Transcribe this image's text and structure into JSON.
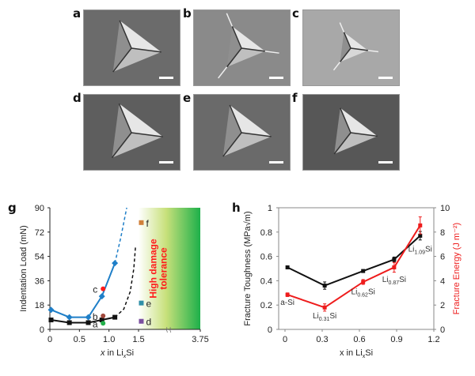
{
  "panels": {
    "micrographs": [
      {
        "label": "a"
      },
      {
        "label": "b"
      },
      {
        "label": "c"
      },
      {
        "label": "d"
      },
      {
        "label": "e"
      },
      {
        "label": "f"
      }
    ],
    "g_label": "g",
    "h_label": "h"
  },
  "chart_data": [
    {
      "id": "g",
      "type": "line",
      "ylabel": "Indentation Load (mN)",
      "xlabel": "x in LixSi",
      "xlabel_parts": {
        "pre": "x",
        "mid": " in Li",
        "sub": "x",
        "post": "Si"
      },
      "ylim": [
        0,
        90
      ],
      "yticks": [
        0,
        18,
        36,
        54,
        72,
        90
      ],
      "xticks": [
        {
          "label": "0",
          "value": 0
        },
        {
          "label": "0.5",
          "value": 0.5
        },
        {
          "label": "1.0",
          "value": 1.0
        },
        {
          "label": "1.5",
          "value": 1.5
        },
        {
          "label": "3.75",
          "value": 3.75
        }
      ],
      "axis_break_symbol": "⌇⌇",
      "region": {
        "label_line1": "High damage",
        "label_line2": "tolerance",
        "from": 1.5,
        "to": 3.75,
        "color_start": "#ffffff",
        "color_end": "#1db04a",
        "label_color": "#ff1a1a"
      },
      "series": [
        {
          "name": "upper (blue)",
          "color": "#1f7fc8",
          "marker": "diamond",
          "x": [
            0.02,
            0.33,
            0.65,
            0.88,
            1.1
          ],
          "y": [
            14.5,
            9,
            9,
            24.5,
            49
          ],
          "extrapolation": {
            "style": "dashed",
            "x": [
              1.1,
              1.2,
              1.3
            ],
            "y": [
              49,
              68,
              90
            ]
          }
        },
        {
          "name": "lower (black)",
          "color": "#111111",
          "marker": "square",
          "x": [
            0.02,
            0.33,
            0.65,
            0.88,
            1.1
          ],
          "y": [
            7,
            5,
            5,
            7,
            9
          ],
          "extrapolation": {
            "style": "dashed",
            "x": [
              1.1,
              1.25,
              1.36,
              1.42,
              1.45
            ],
            "y": [
              9,
              15,
              28,
              45,
              62
            ]
          }
        }
      ],
      "annotations": [
        {
          "label": "a",
          "x": 0.9,
          "y": 4.5,
          "color": "#22b04a",
          "marker": "circle"
        },
        {
          "label": "b",
          "x": 0.9,
          "y": 10,
          "color": "#a0483c",
          "marker": "circle"
        },
        {
          "label": "c",
          "x": 0.9,
          "y": 30,
          "color": "#ff1a1a",
          "marker": "circle"
        },
        {
          "label": "d",
          "x": 1.6,
          "y": 6,
          "color": "#7b4fa0",
          "marker": "square"
        },
        {
          "label": "e",
          "x": 1.6,
          "y": 19.5,
          "color": "#2f8fa8",
          "marker": "square"
        },
        {
          "label": "f",
          "x": 1.6,
          "y": 79,
          "color": "#d0803a",
          "marker": "square"
        }
      ]
    },
    {
      "id": "h",
      "type": "line",
      "ylabel": "Fracture Toughness (MPa√m)",
      "ylabel_right": "Fracture Energy (J m⁻²)",
      "xlabel": "x in LixSi",
      "xlabel_parts": {
        "pre": "x in Li",
        "sub": "x",
        "post": "Si"
      },
      "xlim": [
        0,
        1.2
      ],
      "xticks": [
        0,
        0.3,
        0.6,
        0.9,
        1.2
      ],
      "ylim": [
        0,
        1
      ],
      "yticks": [
        "0",
        "0.2",
        "0.4",
        "0.6",
        "0.8",
        "1"
      ],
      "ylim_right": [
        0,
        10
      ],
      "yticks_right": [
        "0",
        "2",
        "4",
        "6",
        "8",
        "10"
      ],
      "series": [
        {
          "name": "Fracture Toughness",
          "axis": "left",
          "color": "#111111",
          "x": [
            0.02,
            0.32,
            0.63,
            0.88,
            1.09
          ],
          "y": [
            0.51,
            0.36,
            0.48,
            0.575,
            0.77
          ],
          "err": [
            0.01,
            0.03,
            0.01,
            0.02,
            0.035
          ]
        },
        {
          "name": "Fracture Energy",
          "axis": "right",
          "color": "#ee1c1c",
          "x": [
            0.02,
            0.32,
            0.63,
            0.88,
            1.09
          ],
          "y": [
            2.85,
            1.8,
            3.9,
            5.1,
            8.55
          ],
          "err": [
            0.15,
            0.3,
            0.2,
            0.4,
            0.7
          ]
        }
      ],
      "point_labels": [
        {
          "main": "a-Si",
          "sub": "",
          "x": 0.02,
          "y": 0.2
        },
        {
          "main": "Li",
          "sub": "0.31",
          "post": "Si",
          "x": 0.32,
          "y": 0.09
        },
        {
          "main": "Li",
          "sub": "0.62",
          "post": "Si",
          "x": 0.63,
          "y": 0.29
        },
        {
          "main": "Li",
          "sub": "0.87",
          "post": "Si",
          "x": 0.88,
          "y": 0.39
        },
        {
          "main": "Li",
          "sub": "1.09",
          "post": "Si",
          "x": 1.09,
          "y": 0.64
        }
      ]
    }
  ]
}
